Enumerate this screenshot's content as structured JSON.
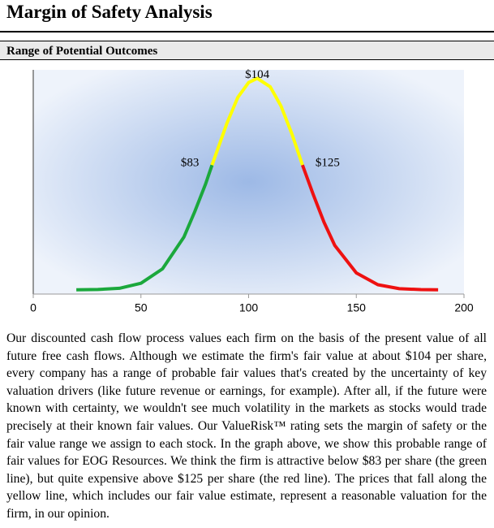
{
  "header": {
    "title": "Margin of Safety Analysis"
  },
  "section": {
    "title": "Range of Potential Outcomes"
  },
  "chart_data": {
    "type": "line",
    "xlim": [
      0,
      200
    ],
    "xticks": [
      0,
      50,
      100,
      150,
      200
    ],
    "ylim": [
      -0.02,
      1.04
    ],
    "series": [
      {
        "color": "#1ba83c",
        "x": [
          20,
          30,
          40,
          50,
          60,
          70,
          75,
          80,
          83
        ],
        "values": [
          0,
          0.0014,
          0.0074,
          0.031,
          0.099,
          0.25,
          0.37,
          0.5,
          0.59
        ]
      },
      {
        "color": "#ffff00",
        "x": [
          83,
          90,
          95,
          100,
          104,
          110,
          115,
          120,
          125
        ],
        "values": [
          0.59,
          0.79,
          0.91,
          0.98,
          1,
          0.96,
          0.87,
          0.74,
          0.59
        ]
      },
      {
        "color": "#ee1111",
        "x": [
          125,
          130,
          135,
          140,
          150,
          160,
          170,
          180,
          188
        ],
        "values": [
          0.59,
          0.45,
          0.32,
          0.21,
          0.08,
          0.024,
          0.0055,
          0.001,
          0
        ]
      }
    ],
    "annotations": [
      {
        "text": "$83",
        "x": 83,
        "y": 0.59
      },
      {
        "text": "$104",
        "x": 104,
        "y": 1
      },
      {
        "text": "$125",
        "x": 125,
        "y": 0.59
      }
    ]
  },
  "body": {
    "paragraph": "Our discounted cash flow process values each firm on the basis of the present value of all future free cash flows. Although we estimate the firm's fair value at about $104 per share, every company has a range of probable fair values that's created by the uncertainty of key valuation drivers (like future revenue or earnings, for example). After all, if the future were known with certainty, we wouldn't see much volatility in the markets as stocks would trade precisely at their known fair values. Our ValueRisk™ rating sets the margin of safety or the fair value range we assign to each stock. In the graph above, we show this probable range of fair values for EOG Resources. We think the firm is attractive below $83 per share (the green line), but quite expensive above $125 per share (the red line). The prices that fall along the yellow line, which includes our fair value estimate, represent a reasonable valuation for the firm, in our opinion."
  }
}
